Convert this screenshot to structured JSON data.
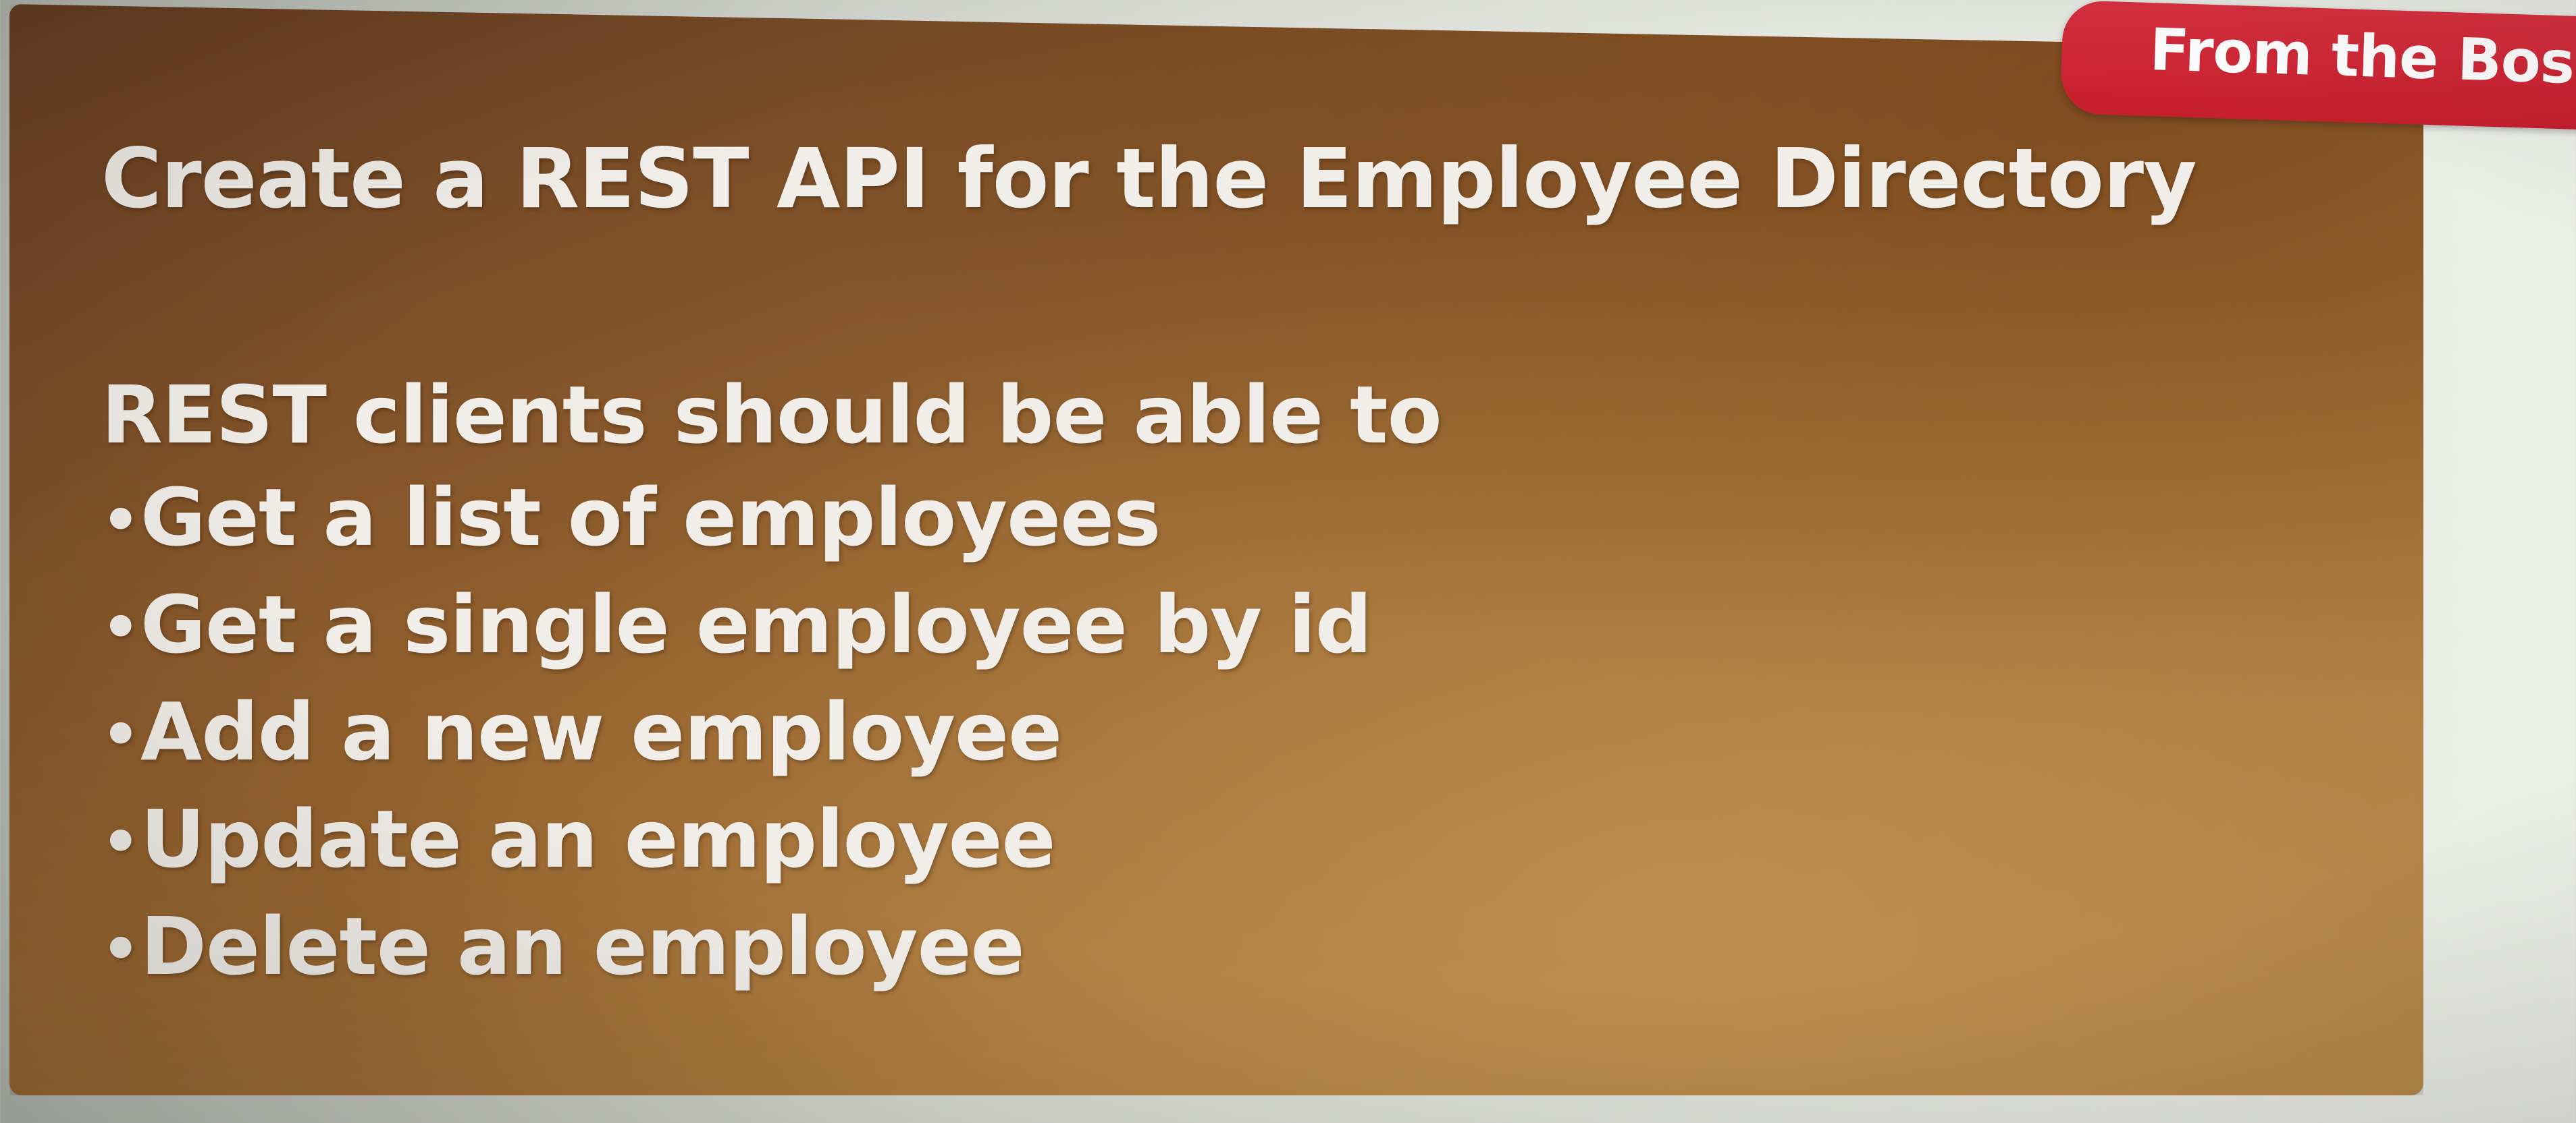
{
  "tag": {
    "label": "From the Boss"
  },
  "slide": {
    "title": "Create a REST API for the Employee Directory",
    "intro": "REST clients should be able to",
    "bullets": [
      "Get a list of employees",
      "Get a single employee by id",
      "Add a new employee",
      "Update an employee",
      "Delete an employee"
    ],
    "bullet_symbol": "•"
  },
  "colors": {
    "panel": "#8a5a2c",
    "tag": "#d12838",
    "text": "#f1eee9"
  }
}
